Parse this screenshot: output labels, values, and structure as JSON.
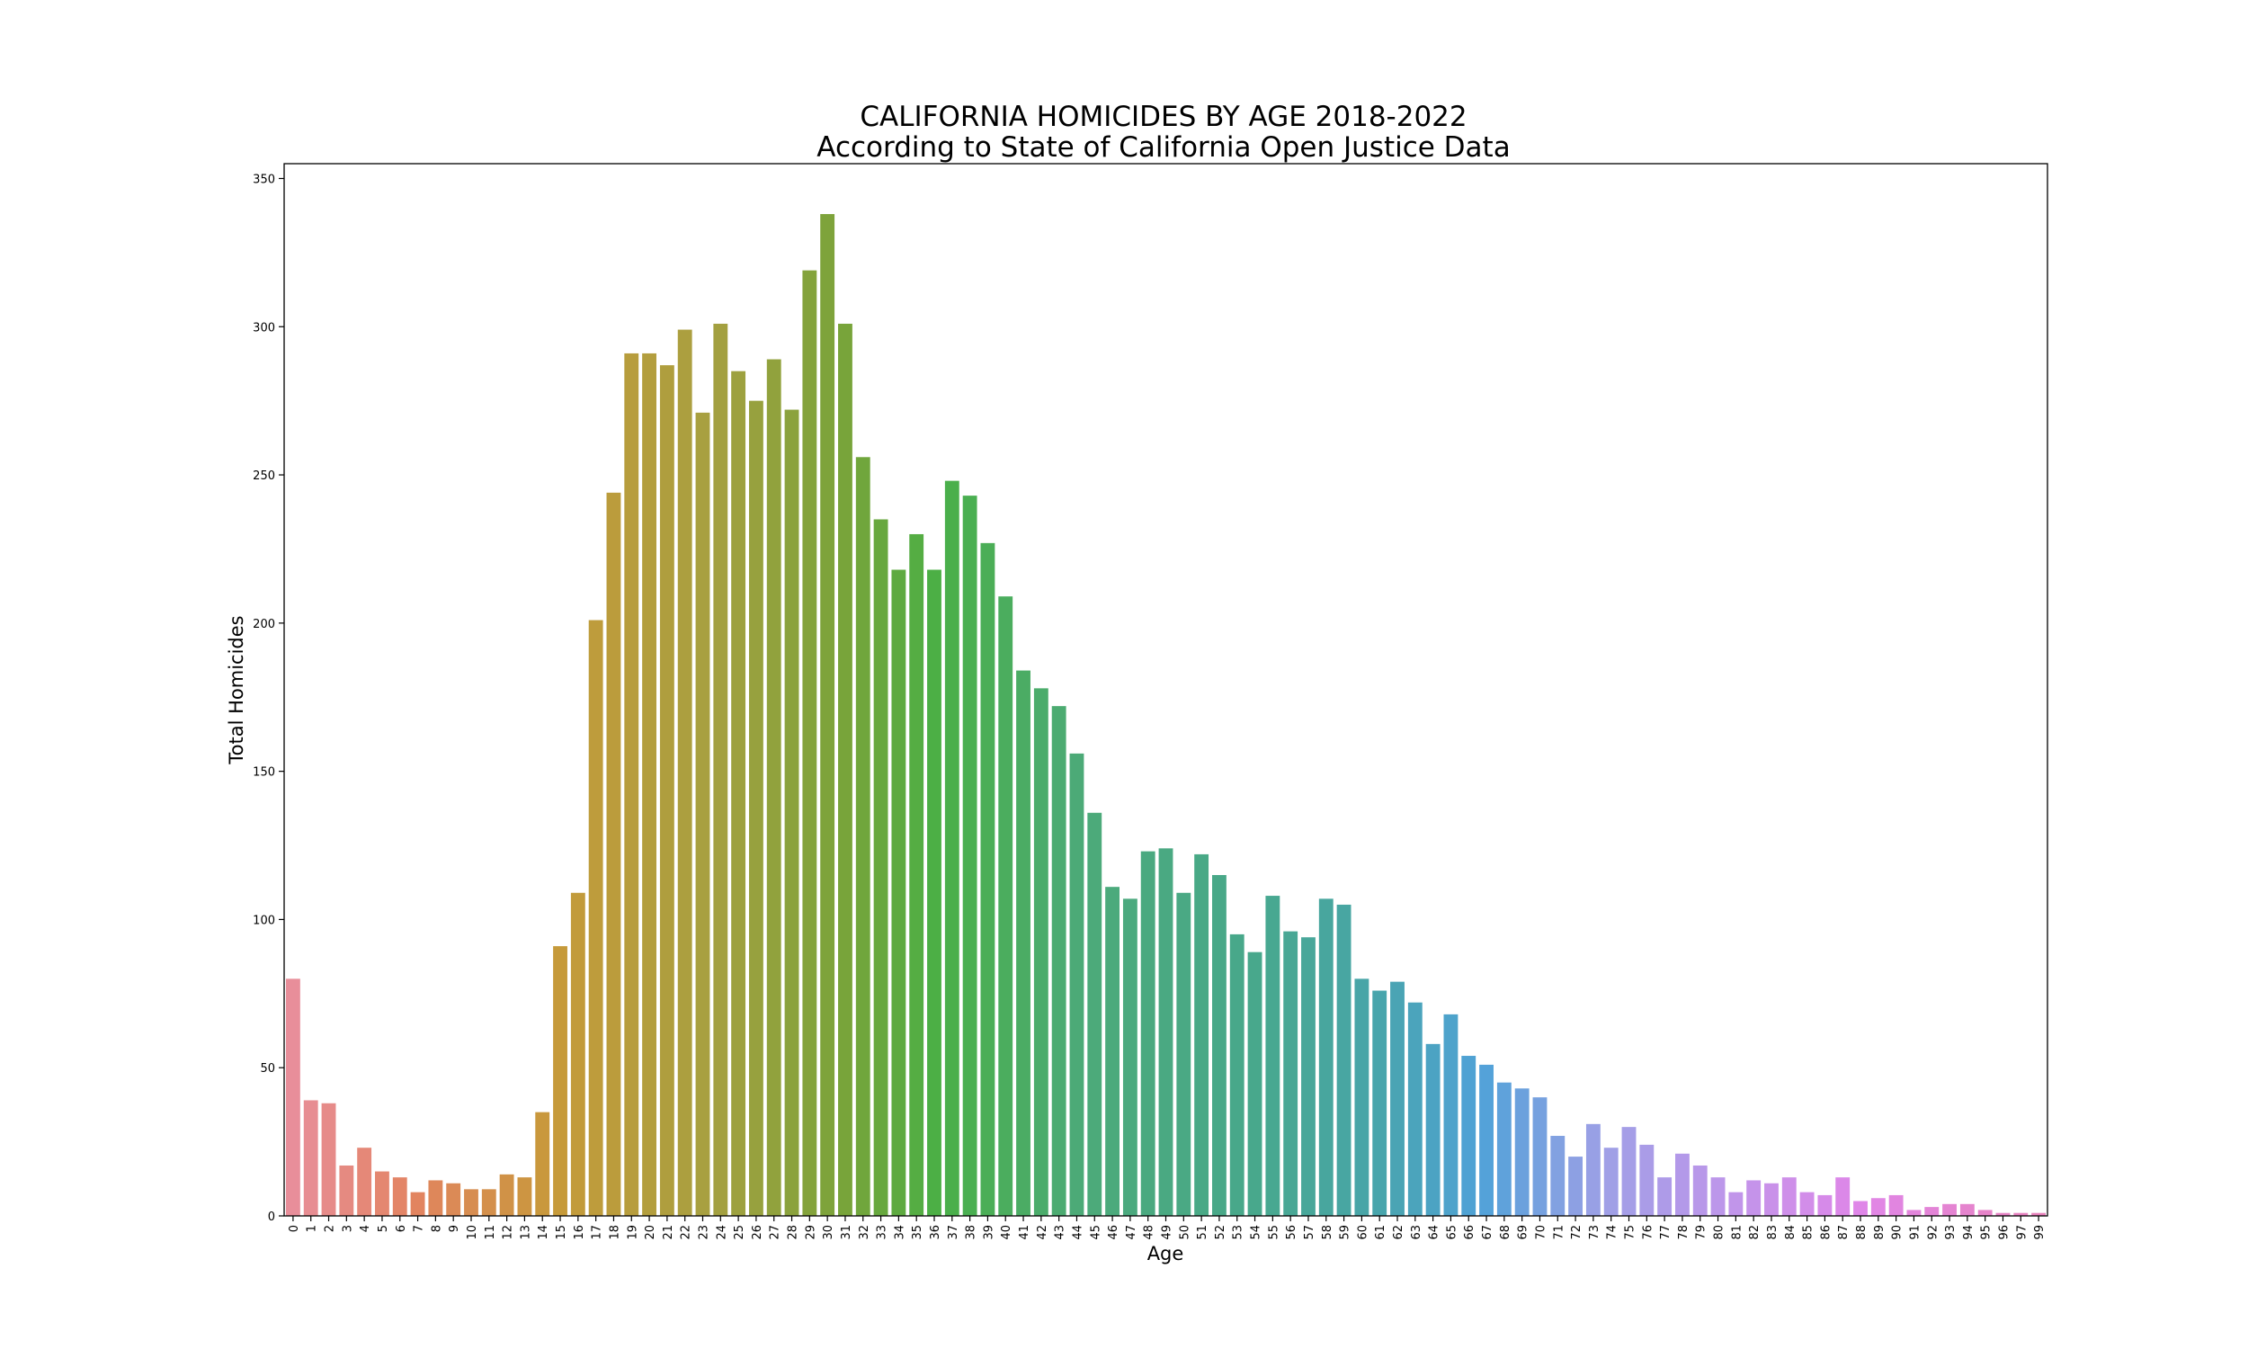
{
  "chart_data": {
    "type": "bar",
    "title": "CALIFORNIA HOMICIDES BY AGE 2018-2022",
    "subtitle": "According to State of California Open Justice Data",
    "xlabel": "Age",
    "ylabel": "Total Homicides",
    "ylim": [
      0,
      355
    ],
    "yticks": [
      0,
      50,
      100,
      150,
      200,
      250,
      300,
      350
    ],
    "grid": false,
    "categories": [
      "0",
      "1",
      "2",
      "3",
      "4",
      "5",
      "6",
      "7",
      "8",
      "9",
      "10",
      "11",
      "12",
      "13",
      "14",
      "15",
      "16",
      "17",
      "18",
      "19",
      "20",
      "21",
      "22",
      "23",
      "24",
      "25",
      "26",
      "27",
      "28",
      "29",
      "30",
      "31",
      "32",
      "33",
      "34",
      "35",
      "36",
      "37",
      "38",
      "39",
      "40",
      "41",
      "42",
      "43",
      "44",
      "45",
      "46",
      "47",
      "48",
      "49",
      "50",
      "51",
      "52",
      "53",
      "54",
      "55",
      "56",
      "57",
      "58",
      "59",
      "60",
      "61",
      "62",
      "63",
      "64",
      "65",
      "66",
      "67",
      "68",
      "69",
      "70",
      "71",
      "72",
      "73",
      "74",
      "75",
      "76",
      "77",
      "78",
      "79",
      "80",
      "81",
      "82",
      "83",
      "84",
      "85",
      "86",
      "87",
      "88",
      "89",
      "90",
      "91",
      "92",
      "93",
      "94",
      "95",
      "96",
      "97",
      "99"
    ],
    "values": [
      80,
      39,
      38,
      17,
      23,
      15,
      13,
      8,
      12,
      11,
      9,
      9,
      14,
      13,
      35,
      91,
      109,
      201,
      244,
      291,
      291,
      287,
      299,
      271,
      301,
      285,
      275,
      289,
      272,
      319,
      338,
      301,
      256,
      235,
      218,
      230,
      218,
      248,
      243,
      227,
      209,
      184,
      178,
      172,
      156,
      136,
      111,
      107,
      123,
      124,
      109,
      122,
      115,
      95,
      89,
      108,
      96,
      94,
      107,
      105,
      80,
      76,
      79,
      72,
      58,
      68,
      54,
      51,
      45,
      43,
      40,
      27,
      20,
      31,
      23,
      30,
      24,
      13,
      21,
      17,
      13,
      8,
      12,
      11,
      13,
      8,
      7,
      13,
      5,
      6,
      7,
      2,
      3,
      4,
      4,
      2,
      1,
      1,
      1
    ]
  }
}
